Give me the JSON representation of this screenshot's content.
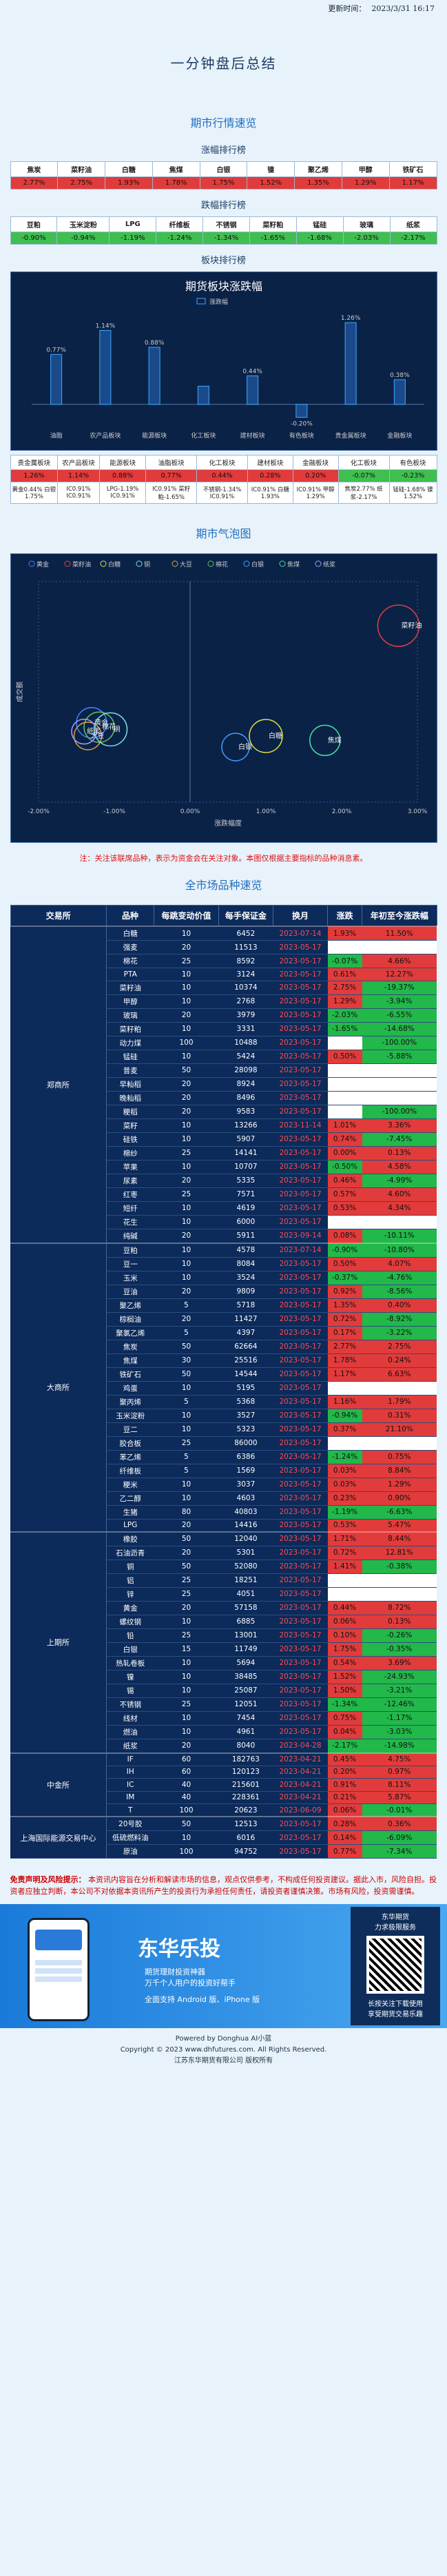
{
  "header": {
    "update_label": "更新时间：",
    "update_time": "2023/3/31 16:17"
  },
  "title": "一分钟盘后总结",
  "market_quick": {
    "title": "期市行情速览",
    "up_title": "涨幅排行榜",
    "up": [
      {
        "name": "焦炭",
        "pct": "2.77%"
      },
      {
        "name": "菜籽油",
        "pct": "2.75%"
      },
      {
        "name": "白糖",
        "pct": "1.93%"
      },
      {
        "name": "焦煤",
        "pct": "1.78%"
      },
      {
        "name": "白银",
        "pct": "1.75%"
      },
      {
        "name": "镍",
        "pct": "1.52%"
      },
      {
        "name": "聚乙烯",
        "pct": "1.35%"
      },
      {
        "name": "甲醇",
        "pct": "1.29%"
      },
      {
        "name": "铁矿石",
        "pct": "1.17%"
      }
    ],
    "down_title": "跌幅排行榜",
    "down": [
      {
        "name": "豆粕",
        "pct": "-0.90%"
      },
      {
        "name": "玉米淀粉",
        "pct": "-0.94%"
      },
      {
        "name": "LPG",
        "pct": "-1.19%"
      },
      {
        "name": "纤维板",
        "pct": "-1.24%"
      },
      {
        "name": "不锈钢",
        "pct": "-1.34%"
      },
      {
        "name": "菜籽粕",
        "pct": "-1.65%"
      },
      {
        "name": "锰硅",
        "pct": "-1.68%"
      },
      {
        "name": "玻璃",
        "pct": "-2.03%"
      },
      {
        "name": "纸浆",
        "pct": "-2.17%"
      }
    ],
    "sector_title": "板块排行榜"
  },
  "chart_data": [
    {
      "type": "bar",
      "title": "期货板块涨跌幅",
      "legend": [
        "涨跌幅"
      ],
      "categories": [
        "油脂",
        "农产品板块",
        "能源板块",
        "化工板块",
        "建材板块",
        "有色板块",
        "贵金属板块",
        "金融板块"
      ],
      "values": [
        0.77,
        1.14,
        0.88,
        0.28,
        0.44,
        -0.2,
        1.26,
        0.38
      ],
      "labels": [
        "0.77%",
        "1.14%",
        "0.88%",
        "",
        "0.44%",
        "-0.20%",
        "1.26%",
        "0.38%"
      ],
      "ylim": [
        -0.3,
        1.4
      ]
    },
    {
      "type": "scatter",
      "title": "期市气泡图",
      "legend": [
        "黄金",
        "菜籽油",
        "白糖",
        "铜",
        "大豆",
        "棉花",
        "白银",
        "焦煤",
        "纸浆"
      ],
      "xlabel": "涨跌幅度",
      "ylabel": "成交额",
      "x_ticks": [
        "-2.00%",
        "-1.00%",
        "0.00%",
        "1.00%",
        "2.00%",
        "3.00%"
      ],
      "xlim": [
        -2.0,
        3.0
      ],
      "points": [
        {
          "label": "菜籽油",
          "x": 2.75,
          "y": 0.8,
          "size": 30,
          "color": "#e04040"
        },
        {
          "label": "白糖",
          "x": 1.0,
          "y": 0.3,
          "size": 24,
          "color": "#e0e040"
        },
        {
          "label": "焦煤",
          "x": 1.78,
          "y": 0.28,
          "size": 22,
          "color": "#40e0a0"
        },
        {
          "label": "黄金",
          "x": -1.3,
          "y": 0.36,
          "size": 22,
          "color": "#4080ff"
        },
        {
          "label": "棉花",
          "x": -1.2,
          "y": 0.34,
          "size": 22,
          "color": "#60c060"
        },
        {
          "label": "大豆",
          "x": -1.35,
          "y": 0.3,
          "size": 20,
          "color": "#e0a040"
        },
        {
          "label": "铜",
          "x": -1.05,
          "y": 0.33,
          "size": 24,
          "color": "#80e0e0"
        },
        {
          "label": "白银",
          "x": 0.6,
          "y": 0.25,
          "size": 20,
          "color": "#40a0ff"
        },
        {
          "label": "纸浆",
          "x": -1.4,
          "y": 0.32,
          "size": 18,
          "color": "#a0a0ff"
        }
      ]
    }
  ],
  "sector_strip": {
    "names": [
      "贵金属板块",
      "农产品板块",
      "能源板块",
      "油脂板块",
      "化工板块",
      "建材板块",
      "金融板块",
      "化工板块",
      "有色板块"
    ],
    "values": [
      "1.26%",
      "1.14%",
      "0.88%",
      "0.77%",
      "0.44%",
      "0.28%",
      "0.20%",
      "-0.07%",
      "-0.23%"
    ],
    "leaders": [
      "黄金0.44%",
      "IC0.91%",
      "LPG-1.19%",
      "IC0.91%",
      "不锈钢-1.34%",
      "IC0.91%",
      "IC0.91%",
      "焦炭2.77%",
      "锰硅-1.68%"
    ],
    "laggards": [
      "白银1.75%",
      "IC0.91%",
      "IC0.91%",
      "菜籽粕-1.65%",
      "IC0.91%",
      "白糖1.93%",
      "甲醇1.29%",
      "纸浆-2.17%",
      "镍1.52%"
    ]
  },
  "bubble_title": "期市气泡图",
  "note": "注：关注该联席品种，表示为资金会在关注对象。本图仅根据主要指标的品种消息素。",
  "full_title": "全市场品种速览",
  "table_headers": [
    "交易所",
    "品种",
    "每跳变动价值",
    "每手保证金",
    "换月",
    "涨跌",
    "年初至今涨跌幅"
  ],
  "exchanges": [
    {
      "name": "郑商所",
      "rows": [
        {
          "p": "白糖",
          "t": "10",
          "m": "6452",
          "d": "2023-07-14",
          "c": "1.93%",
          "y": "11.50%"
        },
        {
          "p": "强麦",
          "t": "20",
          "m": "11513",
          "d": "2023-05-17",
          "c": "",
          "y": ""
        },
        {
          "p": "棉花",
          "t": "25",
          "m": "8592",
          "d": "2023-05-17",
          "c": "-0.07%",
          "y": "4.66%"
        },
        {
          "p": "PTA",
          "t": "10",
          "m": "3124",
          "d": "2023-05-17",
          "c": "0.61%",
          "y": "12.27%"
        },
        {
          "p": "菜籽油",
          "t": "10",
          "m": "10374",
          "d": "2023-05-17",
          "c": "2.75%",
          "y": "-19.37%"
        },
        {
          "p": "甲醇",
          "t": "10",
          "m": "2768",
          "d": "2023-05-17",
          "c": "1.29%",
          "y": "-3.94%"
        },
        {
          "p": "玻璃",
          "t": "20",
          "m": "3979",
          "d": "2023-05-17",
          "c": "-2.03%",
          "y": "-6.55%"
        },
        {
          "p": "菜籽粕",
          "t": "10",
          "m": "3331",
          "d": "2023-05-17",
          "c": "-1.65%",
          "y": "-14.68%"
        },
        {
          "p": "动力煤",
          "t": "100",
          "m": "10488",
          "d": "2023-05-17",
          "c": "",
          "y": "-100.00%"
        },
        {
          "p": "锰硅",
          "t": "10",
          "m": "5424",
          "d": "2023-05-17",
          "c": "0.50%",
          "y": "-5.88%"
        },
        {
          "p": "普麦",
          "t": "50",
          "m": "28098",
          "d": "2023-05-17",
          "c": "",
          "y": ""
        },
        {
          "p": "早籼稻",
          "t": "20",
          "m": "8924",
          "d": "2023-05-17",
          "c": "",
          "y": ""
        },
        {
          "p": "晚籼稻",
          "t": "20",
          "m": "8496",
          "d": "2023-05-17",
          "c": "",
          "y": ""
        },
        {
          "p": "粳稻",
          "t": "20",
          "m": "9583",
          "d": "2023-05-17",
          "c": "",
          "y": "-100.00%"
        },
        {
          "p": "菜籽",
          "t": "10",
          "m": "13266",
          "d": "2023-11-14",
          "c": "1.01%",
          "y": "3.36%"
        },
        {
          "p": "硅铁",
          "t": "10",
          "m": "5907",
          "d": "2023-05-17",
          "c": "0.74%",
          "y": "-7.45%"
        },
        {
          "p": "棉纱",
          "t": "25",
          "m": "14141",
          "d": "2023-05-17",
          "c": "0.00%",
          "y": "0.13%"
        },
        {
          "p": "苹果",
          "t": "10",
          "m": "10707",
          "d": "2023-05-17",
          "c": "-0.50%",
          "y": "4.58%"
        },
        {
          "p": "尿素",
          "t": "20",
          "m": "5335",
          "d": "2023-05-17",
          "c": "0.46%",
          "y": "-4.99%"
        },
        {
          "p": "红枣",
          "t": "25",
          "m": "7571",
          "d": "2023-05-17",
          "c": "0.57%",
          "y": "4.60%"
        },
        {
          "p": "短纤",
          "t": "10",
          "m": "4619",
          "d": "2023-05-17",
          "c": "0.53%",
          "y": "4.34%"
        },
        {
          "p": "花生",
          "t": "10",
          "m": "6000",
          "d": "2023-05-17",
          "c": "",
          "y": ""
        },
        {
          "p": "纯碱",
          "t": "20",
          "m": "5911",
          "d": "2023-09-14",
          "c": "0.08%",
          "y": "-10.11%"
        }
      ]
    },
    {
      "name": "大商所",
      "rows": [
        {
          "p": "豆粕",
          "t": "10",
          "m": "4578",
          "d": "2023-07-14",
          "c": "-0.90%",
          "y": "-10.80%"
        },
        {
          "p": "豆一",
          "t": "10",
          "m": "8084",
          "d": "2023-05-17",
          "c": "0.50%",
          "y": "4.07%"
        },
        {
          "p": "玉米",
          "t": "10",
          "m": "3524",
          "d": "2023-05-17",
          "c": "-0.37%",
          "y": "-4.76%"
        },
        {
          "p": "豆油",
          "t": "20",
          "m": "9809",
          "d": "2023-05-17",
          "c": "0.92%",
          "y": "-8.56%"
        },
        {
          "p": "聚乙烯",
          "t": "5",
          "m": "5718",
          "d": "2023-05-17",
          "c": "1.35%",
          "y": "0.40%"
        },
        {
          "p": "棕榈油",
          "t": "20",
          "m": "11427",
          "d": "2023-05-17",
          "c": "0.72%",
          "y": "-8.92%"
        },
        {
          "p": "聚氯乙烯",
          "t": "5",
          "m": "4397",
          "d": "2023-05-17",
          "c": "0.17%",
          "y": "-3.22%"
        },
        {
          "p": "焦炭",
          "t": "50",
          "m": "62664",
          "d": "2023-05-17",
          "c": "2.77%",
          "y": "2.75%"
        },
        {
          "p": "焦煤",
          "t": "30",
          "m": "25516",
          "d": "2023-05-17",
          "c": "1.78%",
          "y": "0.24%"
        },
        {
          "p": "铁矿石",
          "t": "50",
          "m": "14544",
          "d": "2023-05-17",
          "c": "1.17%",
          "y": "6.63%"
        },
        {
          "p": "鸡蛋",
          "t": "10",
          "m": "5195",
          "d": "2023-05-17",
          "c": "",
          "y": ""
        },
        {
          "p": "聚丙烯",
          "t": "5",
          "m": "5368",
          "d": "2023-05-17",
          "c": "1.16%",
          "y": "1.79%"
        },
        {
          "p": "玉米淀粉",
          "t": "10",
          "m": "3527",
          "d": "2023-05-17",
          "c": "-0.94%",
          "y": "0.31%"
        },
        {
          "p": "豆二",
          "t": "10",
          "m": "5323",
          "d": "2023-05-17",
          "c": "0.37%",
          "y": "21.10%"
        },
        {
          "p": "胶合板",
          "t": "25",
          "m": "86000",
          "d": "2023-05-17",
          "c": "",
          "y": ""
        },
        {
          "p": "苯乙烯",
          "t": "5",
          "m": "6386",
          "d": "2023-05-17",
          "c": "-1.24%",
          "y": "0.75%"
        },
        {
          "p": "纤维板",
          "t": "5",
          "m": "1569",
          "d": "2023-05-17",
          "c": "0.03%",
          "y": "8.84%"
        },
        {
          "p": "粳米",
          "t": "10",
          "m": "3037",
          "d": "2023-05-17",
          "c": "0.03%",
          "y": "1.29%"
        },
        {
          "p": "乙二醇",
          "t": "10",
          "m": "4603",
          "d": "2023-05-17",
          "c": "0.23%",
          "y": "0.90%"
        },
        {
          "p": "生猪",
          "t": "80",
          "m": "40803",
          "d": "2023-05-17",
          "c": "-1.19%",
          "y": "-6.63%"
        },
        {
          "p": "LPG",
          "t": "20",
          "m": "14416",
          "d": "2023-05-17",
          "c": "0.53%",
          "y": "5.47%"
        }
      ]
    },
    {
      "name": "上期所",
      "rows": [
        {
          "p": "橡胶",
          "t": "50",
          "m": "12040",
          "d": "2023-05-17",
          "c": "1.71%",
          "y": "8.44%"
        },
        {
          "p": "石油沥青",
          "t": "20",
          "m": "5301",
          "d": "2023-05-17",
          "c": "0.72%",
          "y": "12.81%"
        },
        {
          "p": "铜",
          "t": "50",
          "m": "52080",
          "d": "2023-05-17",
          "c": "1.41%",
          "y": "-0.38%"
        },
        {
          "p": "铝",
          "t": "25",
          "m": "18251",
          "d": "2023-05-17",
          "c": "",
          "y": ""
        },
        {
          "p": "锌",
          "t": "25",
          "m": "4051",
          "d": "2023-05-17",
          "c": "",
          "y": ""
        },
        {
          "p": "黄金",
          "t": "20",
          "m": "57158",
          "d": "2023-05-17",
          "c": "0.44%",
          "y": "8.72%"
        },
        {
          "p": "螺纹钢",
          "t": "10",
          "m": "6885",
          "d": "2023-05-17",
          "c": "0.06%",
          "y": "0.13%"
        },
        {
          "p": "铅",
          "t": "25",
          "m": "13001",
          "d": "2023-05-17",
          "c": "0.10%",
          "y": "-0.26%"
        },
        {
          "p": "白银",
          "t": "15",
          "m": "11749",
          "d": "2023-05-17",
          "c": "1.75%",
          "y": "-0.35%"
        },
        {
          "p": "热轧卷板",
          "t": "10",
          "m": "5694",
          "d": "2023-05-17",
          "c": "0.54%",
          "y": "3.69%"
        },
        {
          "p": "镍",
          "t": "10",
          "m": "38485",
          "d": "2023-05-17",
          "c": "1.52%",
          "y": "-24.93%"
        },
        {
          "p": "锡",
          "t": "10",
          "m": "25087",
          "d": "2023-05-17",
          "c": "1.50%",
          "y": "-3.21%"
        },
        {
          "p": "不锈钢",
          "t": "25",
          "m": "12051",
          "d": "2023-05-17",
          "c": "-1.34%",
          "y": "-12.46%"
        },
        {
          "p": "线材",
          "t": "10",
          "m": "7454",
          "d": "2023-05-17",
          "c": "0.75%",
          "y": "-1.17%"
        },
        {
          "p": "燃油",
          "t": "10",
          "m": "4961",
          "d": "2023-05-17",
          "c": "0.04%",
          "y": "-3.03%"
        },
        {
          "p": "纸浆",
          "t": "20",
          "m": "8040",
          "d": "2023-04-28",
          "c": "-2.17%",
          "y": "-14.98%"
        }
      ]
    },
    {
      "name": "中金所",
      "rows": [
        {
          "p": "IF",
          "t": "60",
          "m": "182763",
          "d": "2023-04-21",
          "c": "0.45%",
          "y": "4.75%"
        },
        {
          "p": "IH",
          "t": "60",
          "m": "120123",
          "d": "2023-04-21",
          "c": "0.20%",
          "y": "0.97%"
        },
        {
          "p": "IC",
          "t": "40",
          "m": "215601",
          "d": "2023-04-21",
          "c": "0.91%",
          "y": "8.11%"
        },
        {
          "p": "IM",
          "t": "40",
          "m": "228361",
          "d": "2023-04-21",
          "c": "0.21%",
          "y": "5.87%"
        },
        {
          "p": "T",
          "t": "100",
          "m": "20623",
          "d": "2023-06-09",
          "c": "0.06%",
          "y": "-0.01%"
        }
      ]
    },
    {
      "name": "上海国际能源交易中心",
      "rows": [
        {
          "p": "20号胶",
          "t": "50",
          "m": "12513",
          "d": "2023-05-17",
          "c": "0.28%",
          "y": "0.36%"
        },
        {
          "p": "低硫燃料油",
          "t": "10",
          "m": "6016",
          "d": "2023-05-17",
          "c": "0.14%",
          "y": "-6.09%"
        },
        {
          "p": "原油",
          "t": "100",
          "m": "94752",
          "d": "2023-05-17",
          "c": "0.77%",
          "y": "-7.34%"
        }
      ]
    }
  ],
  "disclaimer": {
    "title": "免责声明及风险提示：",
    "body": "本资讯内容旨在分析和解读市场的信息，观点仅供参考，不构成任何投资建议。据此入市，风险自担。投资者应独立判断，本公司不对依据本资讯所产生的投资行为承担任何责任，请投资者谨慎决策。市场有风险，投资需谨慎。"
  },
  "banner": {
    "brand": "东华乐投",
    "slogan": "期货理财投资神器",
    "sub": "万千个人用户的投资好帮手",
    "platform": "全面支持 Android 版、iPhone 版",
    "qr_title": "东华期货",
    "qr_sub1": "力求极限服务",
    "qr_sub2": "长按关注下载使用",
    "qr_sub3": "享受期货交易乐趣"
  },
  "footer": {
    "powered": "Powered by Donghua AI小蓝",
    "copyright": "Copyright © 2023 www.dhfutures.com. All Rights Reserved.",
    "company": "江苏东华期货有限公司 版权所有"
  }
}
